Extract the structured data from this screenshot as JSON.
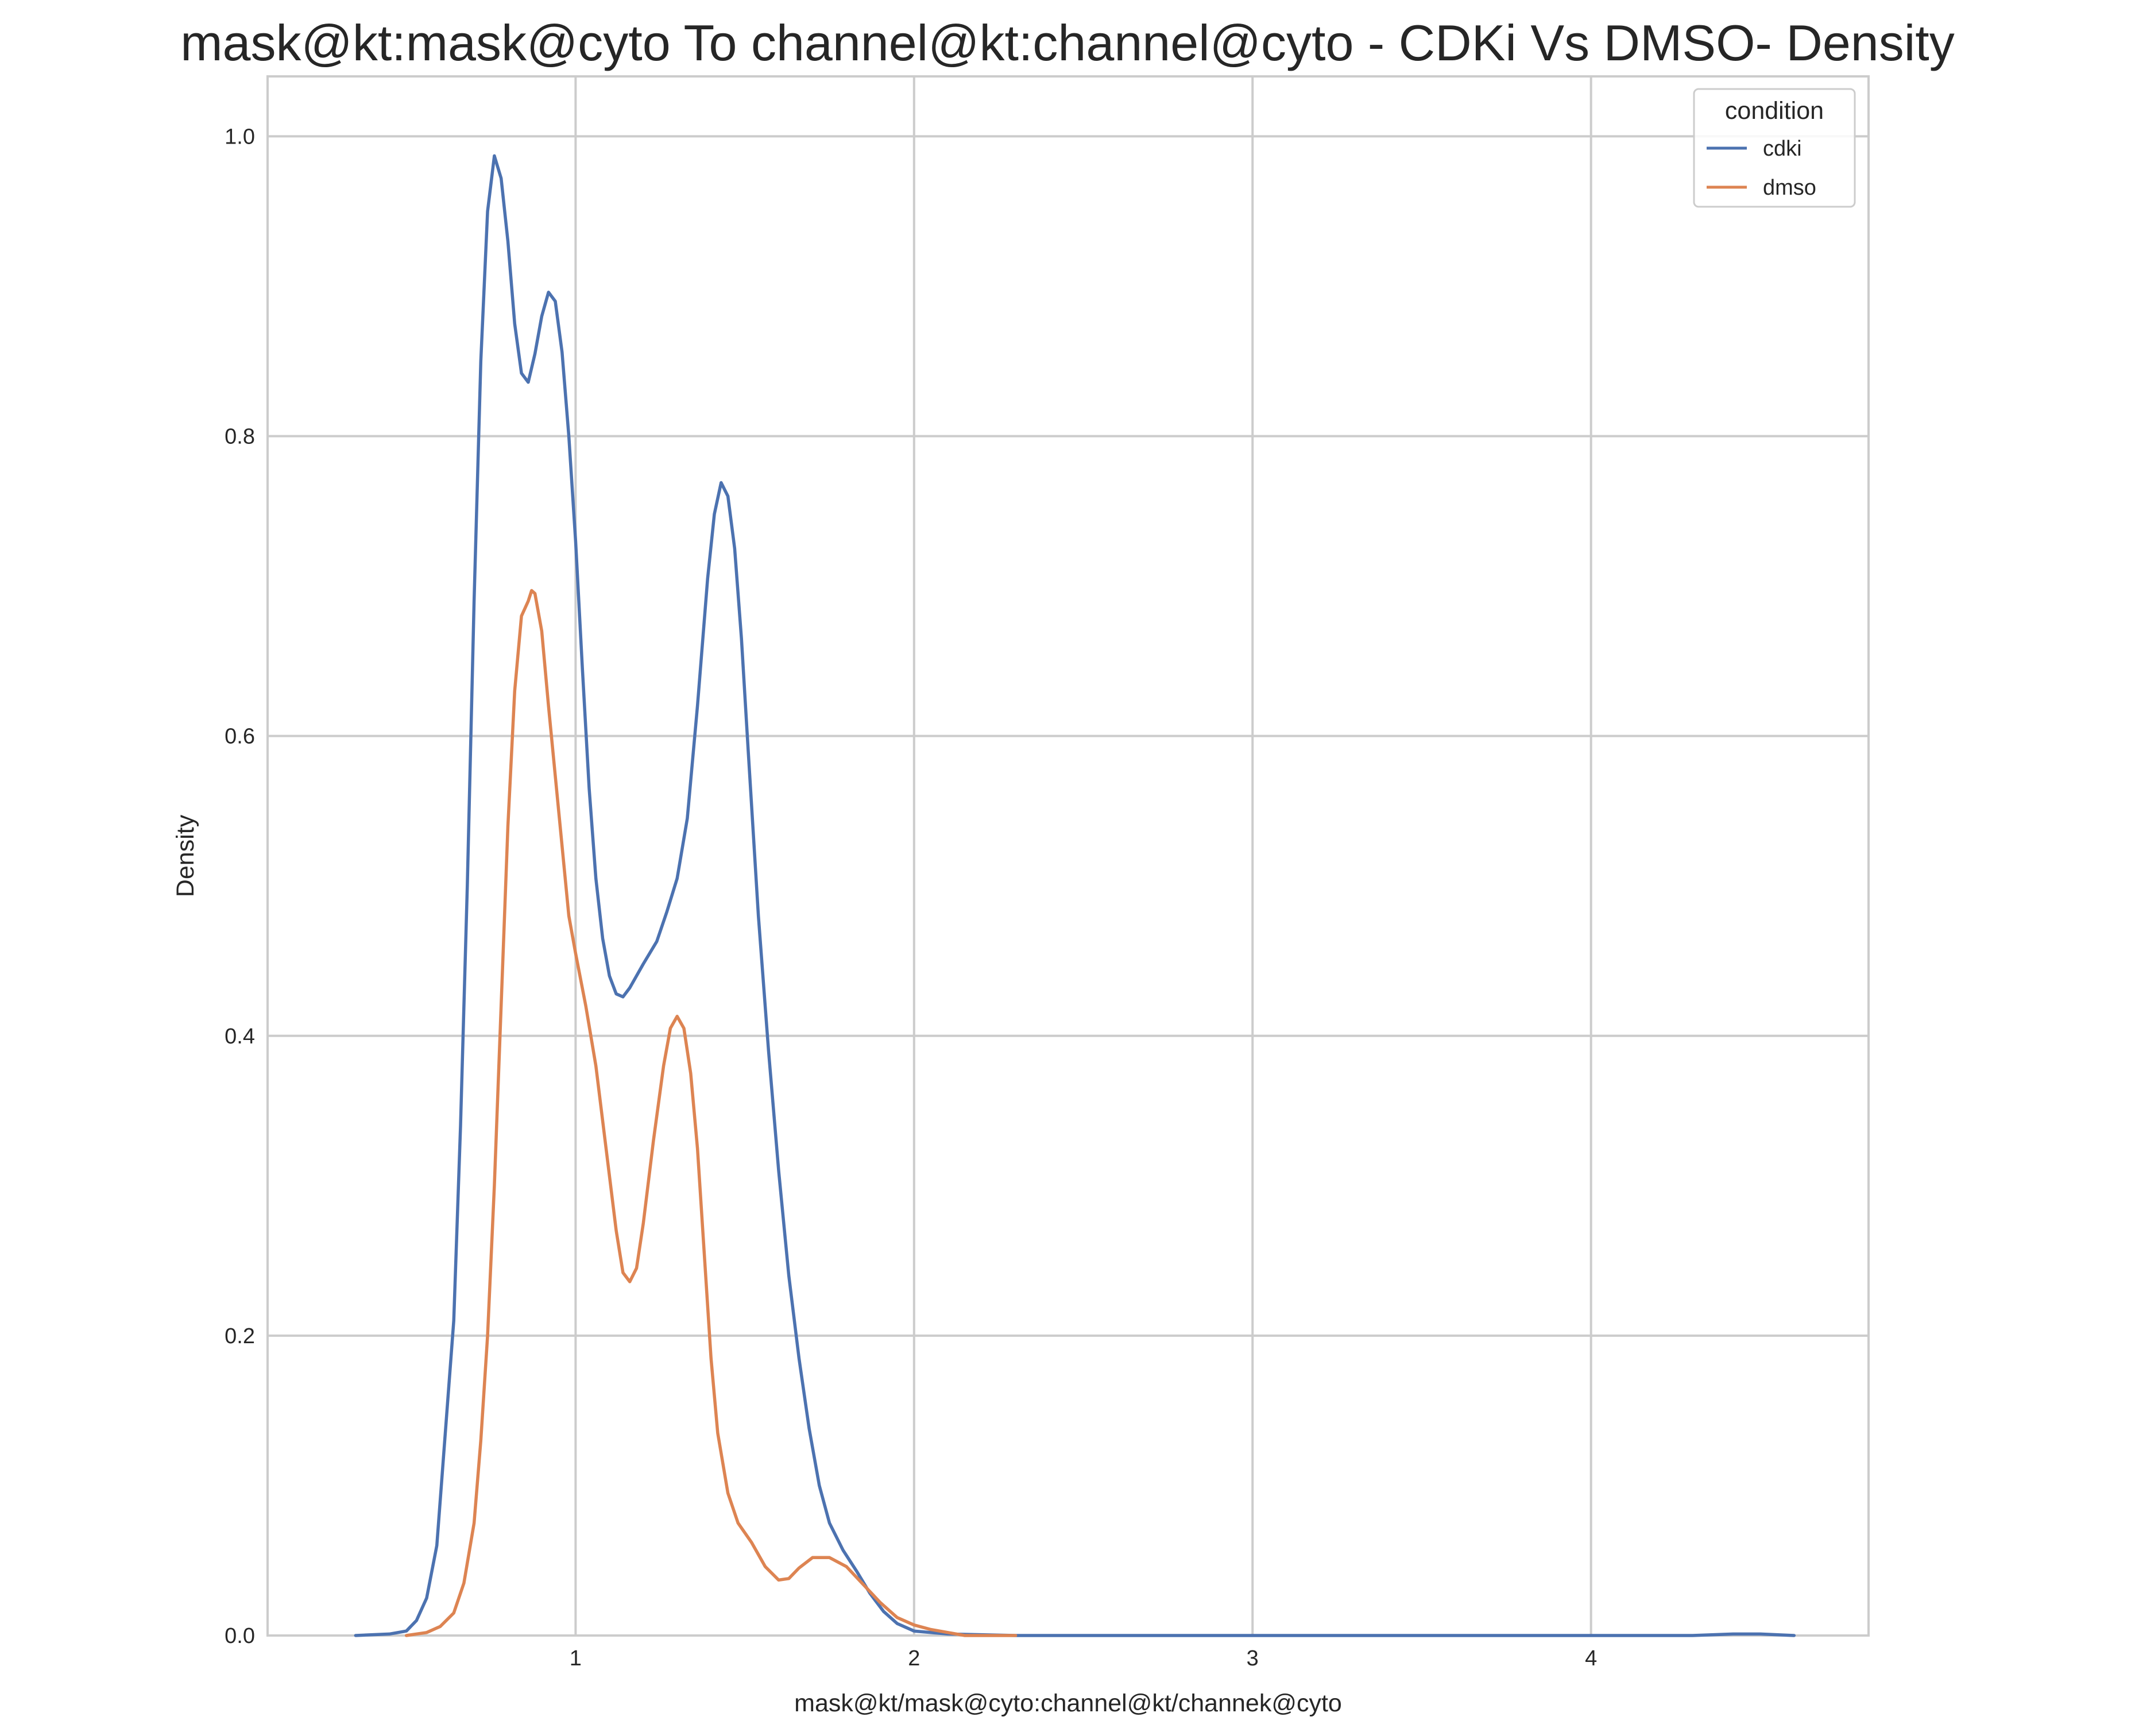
{
  "chart_data": {
    "type": "line",
    "title": "mask@kt:mask@cyto To channel@kt:channel@cyto - CDKi Vs DMSO- Density",
    "xlabel": "mask@kt/mask@cyto:channel@kt/channek@cyto",
    "ylabel": "Density",
    "xlim": [
      0.09,
      4.82
    ],
    "ylim": [
      0.0,
      1.04
    ],
    "x_ticks": [
      1,
      2,
      3,
      4
    ],
    "y_ticks": [
      0.0,
      0.2,
      0.4,
      0.6,
      0.8,
      1.0
    ],
    "x_tick_labels": [
      "1",
      "2",
      "3",
      "4"
    ],
    "y_tick_labels": [
      "0.0",
      "0.2",
      "0.4",
      "0.6",
      "0.8",
      "1.0"
    ],
    "grid": true,
    "legend": {
      "title": "condition",
      "placement": "top-right"
    },
    "series": [
      {
        "name": "cdki",
        "color": "#4c72b0",
        "points": [
          [
            0.35,
            0.0
          ],
          [
            0.45,
            0.001
          ],
          [
            0.5,
            0.003
          ],
          [
            0.53,
            0.01
          ],
          [
            0.56,
            0.025
          ],
          [
            0.59,
            0.06
          ],
          [
            0.61,
            0.12
          ],
          [
            0.64,
            0.21
          ],
          [
            0.66,
            0.34
          ],
          [
            0.68,
            0.5
          ],
          [
            0.7,
            0.69
          ],
          [
            0.72,
            0.85
          ],
          [
            0.74,
            0.95
          ],
          [
            0.76,
            0.987
          ],
          [
            0.78,
            0.972
          ],
          [
            0.8,
            0.93
          ],
          [
            0.82,
            0.875
          ],
          [
            0.84,
            0.842
          ],
          [
            0.86,
            0.836
          ],
          [
            0.88,
            0.855
          ],
          [
            0.9,
            0.88
          ],
          [
            0.92,
            0.896
          ],
          [
            0.94,
            0.89
          ],
          [
            0.96,
            0.856
          ],
          [
            0.98,
            0.8
          ],
          [
            1.0,
            0.73
          ],
          [
            1.02,
            0.645
          ],
          [
            1.04,
            0.565
          ],
          [
            1.06,
            0.505
          ],
          [
            1.08,
            0.465
          ],
          [
            1.1,
            0.44
          ],
          [
            1.12,
            0.428
          ],
          [
            1.14,
            0.426
          ],
          [
            1.16,
            0.432
          ],
          [
            1.2,
            0.448
          ],
          [
            1.24,
            0.463
          ],
          [
            1.27,
            0.483
          ],
          [
            1.3,
            0.505
          ],
          [
            1.33,
            0.545
          ],
          [
            1.36,
            0.62
          ],
          [
            1.39,
            0.705
          ],
          [
            1.41,
            0.748
          ],
          [
            1.43,
            0.769
          ],
          [
            1.45,
            0.76
          ],
          [
            1.47,
            0.725
          ],
          [
            1.49,
            0.665
          ],
          [
            1.51,
            0.59
          ],
          [
            1.54,
            0.48
          ],
          [
            1.57,
            0.39
          ],
          [
            1.6,
            0.31
          ],
          [
            1.63,
            0.24
          ],
          [
            1.66,
            0.185
          ],
          [
            1.69,
            0.138
          ],
          [
            1.72,
            0.1
          ],
          [
            1.75,
            0.075
          ],
          [
            1.79,
            0.057
          ],
          [
            1.83,
            0.043
          ],
          [
            1.87,
            0.028
          ],
          [
            1.91,
            0.016
          ],
          [
            1.95,
            0.008
          ],
          [
            2.0,
            0.003
          ],
          [
            2.1,
            0.001
          ],
          [
            2.3,
            0.0
          ],
          [
            3.0,
            0.0
          ],
          [
            4.0,
            0.0
          ],
          [
            4.3,
            0.0
          ],
          [
            4.42,
            0.001
          ],
          [
            4.5,
            0.001
          ],
          [
            4.6,
            0.0
          ]
        ]
      },
      {
        "name": "dmso",
        "color": "#dd8452",
        "points": [
          [
            0.5,
            0.0
          ],
          [
            0.56,
            0.002
          ],
          [
            0.6,
            0.006
          ],
          [
            0.64,
            0.015
          ],
          [
            0.67,
            0.035
          ],
          [
            0.7,
            0.075
          ],
          [
            0.72,
            0.13
          ],
          [
            0.74,
            0.2
          ],
          [
            0.76,
            0.3
          ],
          [
            0.78,
            0.42
          ],
          [
            0.8,
            0.54
          ],
          [
            0.82,
            0.63
          ],
          [
            0.84,
            0.68
          ],
          [
            0.86,
            0.69
          ],
          [
            0.87,
            0.697
          ],
          [
            0.88,
            0.695
          ],
          [
            0.9,
            0.67
          ],
          [
            0.92,
            0.62
          ],
          [
            0.95,
            0.55
          ],
          [
            0.98,
            0.48
          ],
          [
            1.0,
            0.455
          ],
          [
            1.03,
            0.42
          ],
          [
            1.06,
            0.38
          ],
          [
            1.09,
            0.325
          ],
          [
            1.12,
            0.27
          ],
          [
            1.14,
            0.242
          ],
          [
            1.16,
            0.236
          ],
          [
            1.18,
            0.245
          ],
          [
            1.2,
            0.275
          ],
          [
            1.23,
            0.33
          ],
          [
            1.26,
            0.38
          ],
          [
            1.28,
            0.405
          ],
          [
            1.3,
            0.413
          ],
          [
            1.32,
            0.405
          ],
          [
            1.34,
            0.375
          ],
          [
            1.36,
            0.325
          ],
          [
            1.38,
            0.255
          ],
          [
            1.4,
            0.185
          ],
          [
            1.42,
            0.135
          ],
          [
            1.45,
            0.095
          ],
          [
            1.48,
            0.075
          ],
          [
            1.52,
            0.062
          ],
          [
            1.56,
            0.046
          ],
          [
            1.6,
            0.037
          ],
          [
            1.63,
            0.038
          ],
          [
            1.66,
            0.045
          ],
          [
            1.7,
            0.052
          ],
          [
            1.75,
            0.052
          ],
          [
            1.8,
            0.046
          ],
          [
            1.85,
            0.034
          ],
          [
            1.9,
            0.022
          ],
          [
            1.95,
            0.012
          ],
          [
            2.0,
            0.007
          ],
          [
            2.05,
            0.004
          ],
          [
            2.1,
            0.002
          ],
          [
            2.15,
            0.0
          ],
          [
            2.3,
            0.0
          ]
        ]
      }
    ]
  }
}
